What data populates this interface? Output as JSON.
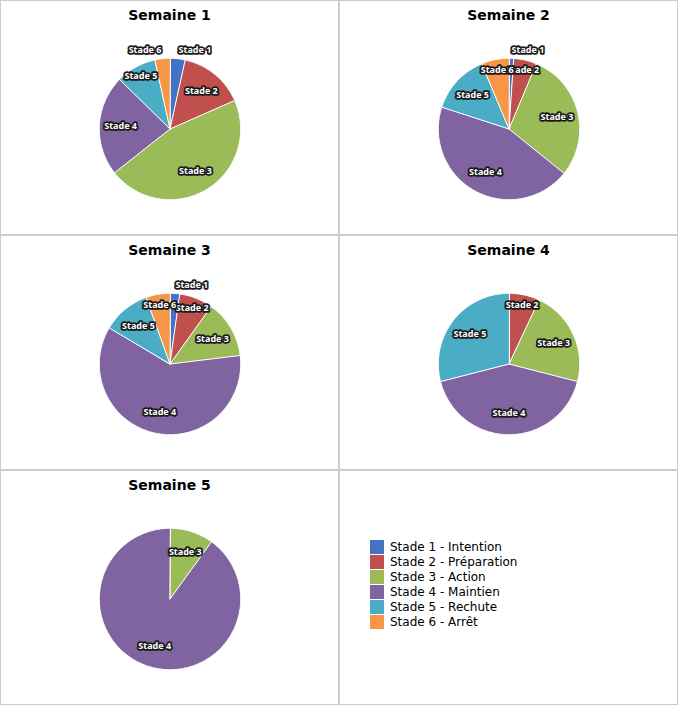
{
  "chart_data": [
    {
      "type": "pie",
      "title": "Semaine 1",
      "categories": [
        "Stade 1",
        "Stade 2",
        "Stade 3",
        "Stade 4",
        "Stade 5",
        "Stade 6"
      ],
      "values": [
        3,
        13,
        40,
        20,
        8,
        3
      ],
      "colors": [
        "#4472C4",
        "#C0504D",
        "#9BBB59",
        "#8064A2",
        "#4BACC6",
        "#F79646"
      ]
    },
    {
      "type": "pie",
      "title": "Semaine 2",
      "categories": [
        "Stade 1",
        "Stade 2",
        "Stade 3",
        "Stade 4",
        "Stade 5",
        "Stade 6"
      ],
      "values": [
        1,
        5,
        28,
        42,
        13,
        6
      ],
      "colors": [
        "#4472C4",
        "#C0504D",
        "#9BBB59",
        "#8064A2",
        "#4BACC6",
        "#F79646"
      ]
    },
    {
      "type": "pie",
      "title": "Semaine 3",
      "categories": [
        "Stade 1",
        "Stade 2",
        "Stade 3",
        "Stade 4",
        "Stade 5",
        "Stade 6"
      ],
      "values": [
        2,
        7,
        12,
        55,
        10,
        5
      ],
      "colors": [
        "#4472C4",
        "#C0504D",
        "#9BBB59",
        "#8064A2",
        "#4BACC6",
        "#F79646"
      ]
    },
    {
      "type": "pie",
      "title": "Semaine 4",
      "categories": [
        "Stade 2",
        "Stade 3",
        "Stade 4",
        "Stade 5"
      ],
      "values": [
        7,
        22,
        42,
        29
      ],
      "colors": [
        "#C0504D",
        "#9BBB59",
        "#8064A2",
        "#4BACC6"
      ]
    },
    {
      "type": "pie",
      "title": "Semaine 5",
      "categories": [
        "Stade 3",
        "Stade 4"
      ],
      "values": [
        10,
        90
      ],
      "colors": [
        "#9BBB59",
        "#8064A2"
      ]
    },
    {
      "type": "legend",
      "series": [
        {
          "name": "Stade 1 - Intention",
          "color": "#4472C4"
        },
        {
          "name": "Stade 2 - Préparation",
          "color": "#C0504D"
        },
        {
          "name": "Stade 3 - Action",
          "color": "#9BBB59"
        },
        {
          "name": "Stade 4 - Maintien",
          "color": "#8064A2"
        },
        {
          "name": "Stade 5 - Rechute",
          "color": "#4BACC6"
        },
        {
          "name": "Stade 6 - Arrêt",
          "color": "#F79646"
        }
      ]
    }
  ]
}
